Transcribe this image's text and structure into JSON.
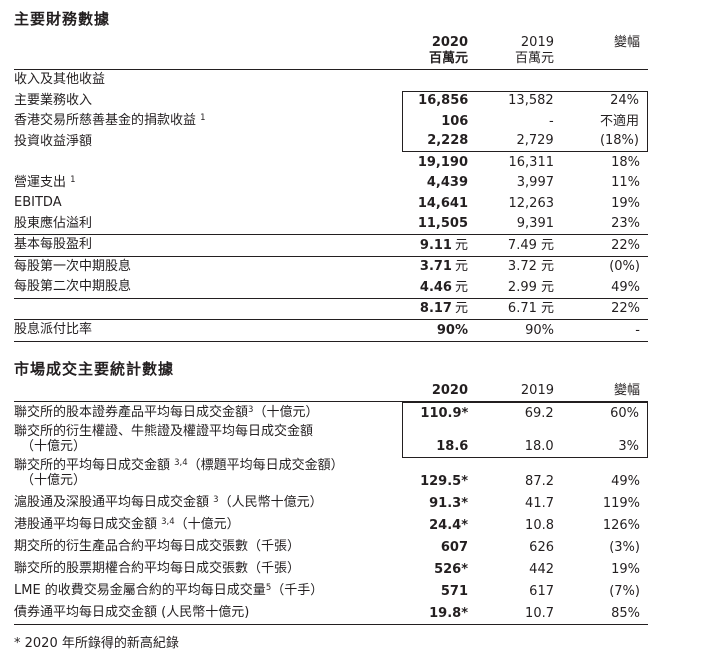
{
  "colors": {
    "text": "#231f20",
    "rule": "#231f20",
    "background": "#ffffff"
  },
  "footnote": "* 2020 年所錄得的新高紀錄",
  "sections": [
    {
      "title": "主要財務數據",
      "header": {
        "y2020": "2020",
        "u2020": "百萬元",
        "y2019": "2019",
        "u2019": "百萬元",
        "change": "變幅"
      },
      "rows": [
        {
          "label": [
            {
              "t": "收入及其他收益"
            }
          ]
        },
        {
          "label": [
            {
              "t": "主要業務收入"
            }
          ],
          "v2020": {
            "n": "16,856"
          },
          "v2019": "13,582",
          "change": "24%",
          "box": "top"
        },
        {
          "label": [
            {
              "t": "香港交易所慈善基金的捐款收益 "
            },
            {
              "sup": "1"
            }
          ],
          "v2020": {
            "n": "106"
          },
          "v2019": "-",
          "change": "不適用",
          "box": "mid"
        },
        {
          "label": [
            {
              "t": "投資收益淨額"
            }
          ],
          "v2020": {
            "n": "2,228"
          },
          "v2019": "2,729",
          "change": "(18%)",
          "box": "bottom"
        },
        {
          "label": [],
          "v2020": {
            "n": "19,190"
          },
          "v2019": "16,311",
          "change": "18%"
        },
        {
          "label": [
            {
              "t": "營運支出 "
            },
            {
              "sup": "1"
            }
          ],
          "v2020": {
            "n": "4,439"
          },
          "v2019": "3,997",
          "change": "11%"
        },
        {
          "label": [
            {
              "t": "EBITDA"
            }
          ],
          "v2020": {
            "n": "14,641"
          },
          "v2019": "12,263",
          "change": "19%"
        },
        {
          "label": [
            {
              "t": "股東應佔溢利"
            }
          ],
          "v2020": {
            "n": "11,505"
          },
          "v2019": "9,391",
          "change": "23%",
          "rule": true
        },
        {
          "label": [
            {
              "t": "基本每股盈利"
            }
          ],
          "v2020": {
            "n": "9.11",
            "unit": "元"
          },
          "v2019": "7.49 元",
          "change": "22%",
          "rule": true
        },
        {
          "label": [
            {
              "t": "每股第一次中期股息"
            }
          ],
          "v2020": {
            "n": "3.71",
            "unit": "元"
          },
          "v2019": "3.72 元",
          "change": "(0%)"
        },
        {
          "label": [
            {
              "t": "每股第二次中期股息"
            }
          ],
          "v2020": {
            "n": "4.46",
            "unit": "元"
          },
          "v2019": "2.99 元",
          "change": "49%",
          "rule": true
        },
        {
          "label": [],
          "v2020": {
            "n": "8.17",
            "unit": "元"
          },
          "v2019": "6.71 元",
          "change": "22%",
          "rule": true
        },
        {
          "label": [
            {
              "t": "股息派付比率"
            }
          ],
          "v2020": {
            "n": "90%"
          },
          "v2019": "90%",
          "change": "-",
          "rule": true
        }
      ]
    },
    {
      "title": "市場成交主要統計數據",
      "header": {
        "y2020": "2020",
        "y2019": "2019",
        "change": "變幅"
      },
      "rows": [
        {
          "label": [
            {
              "t": "聯交所的股本證券產品平均每日成交金額"
            },
            {
              "sup": "3"
            },
            {
              "t": "（十億元）"
            }
          ],
          "v2020": {
            "n": "110.9*"
          },
          "v2019": "69.2",
          "change": "60%",
          "box": "top"
        },
        {
          "label": [
            {
              "t": "聯交所的衍生權證、牛熊證及權證平均每日成交金額"
            }
          ],
          "line2": "（十億元）",
          "v2020": {
            "n": "18.6"
          },
          "v2019": "18.0",
          "change": "3%",
          "box": "bottom"
        },
        {
          "label": [
            {
              "t": "聯交所的平均每日成交金額 "
            },
            {
              "sup": "3,4"
            },
            {
              "t": "（標題平均每日成交金額）"
            }
          ],
          "line2": "（十億元）",
          "v2020": {
            "n": "129.5*"
          },
          "v2019": "87.2",
          "change": "49%"
        },
        {
          "label": [
            {
              "t": "滬股通及深股通平均每日成交金額 "
            },
            {
              "sup": "3"
            },
            {
              "t": "（人民幣十億元）"
            }
          ],
          "v2020": {
            "n": "91.3*"
          },
          "v2019": "41.7",
          "change": "119%"
        },
        {
          "label": [
            {
              "t": "港股通平均每日成交金額 "
            },
            {
              "sup": "3,4"
            },
            {
              "t": "（十億元）"
            }
          ],
          "v2020": {
            "n": "24.4*"
          },
          "v2019": "10.8",
          "change": "126%"
        },
        {
          "label": [
            {
              "t": "期交所的衍生產品合約平均每日成交張數（千張）"
            }
          ],
          "v2020": {
            "n": "607"
          },
          "v2019": "626",
          "change": "(3%)"
        },
        {
          "label": [
            {
              "t": "聯交所的股票期權合約平均每日成交張數（千張）"
            }
          ],
          "v2020": {
            "n": "526*"
          },
          "v2019": "442",
          "change": "19%"
        },
        {
          "label": [
            {
              "t": "LME 的收費交易金屬合約的平均每日成交量"
            },
            {
              "sup": "5"
            },
            {
              "t": "（千手）"
            }
          ],
          "v2020": {
            "n": "571"
          },
          "v2019": "617",
          "change": "(7%)"
        },
        {
          "label": [
            {
              "t": "債券通平均每日成交金額 (人民幣十億元)"
            }
          ],
          "v2020": {
            "n": "19.8*"
          },
          "v2019": "10.7",
          "change": "85%",
          "rule": true
        }
      ]
    }
  ]
}
